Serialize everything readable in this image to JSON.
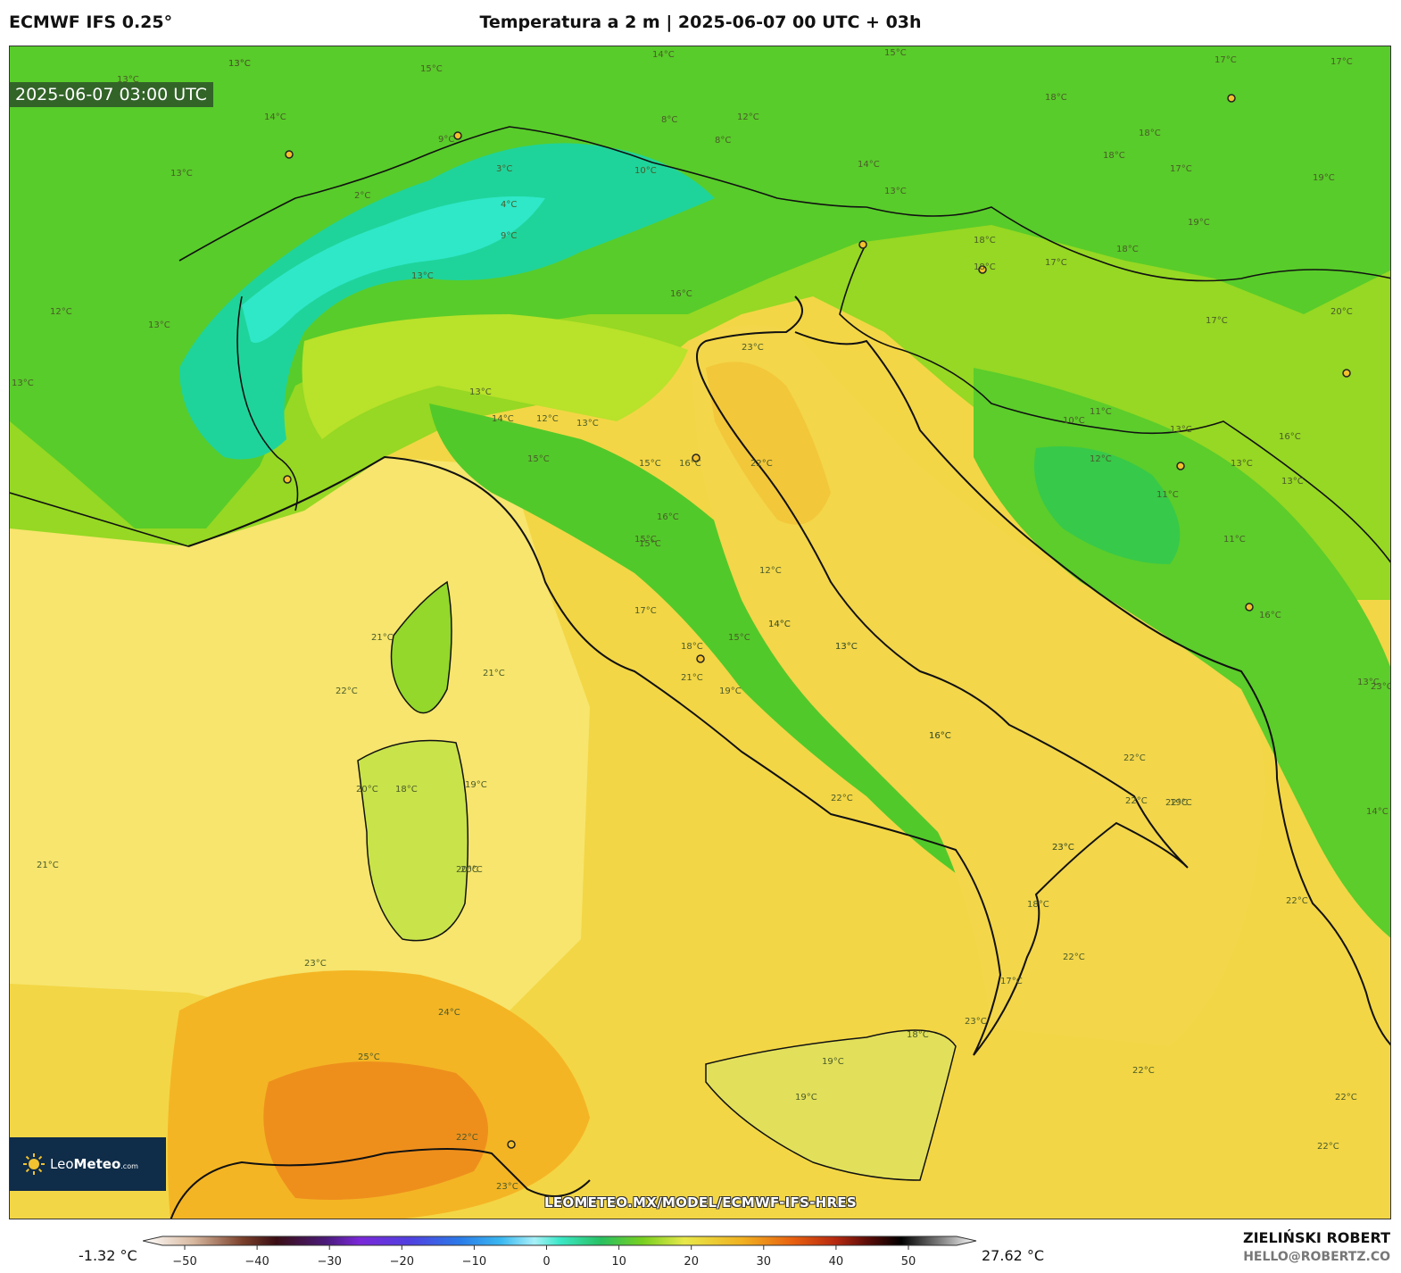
{
  "header": {
    "model": "ECMWF IFS 0.25°",
    "title": "Temperatura a 2 m | 2025-06-07 00 UTC + 03h"
  },
  "map": {
    "valid_time": "2025-06-07 03:00 UTC",
    "watermark": "LEOMETEO.MX/MODEL/ECMWF-IFS-HRES",
    "colors": {
      "cold_alps": "#1fd6a0",
      "green": "#5bd22a",
      "light_green": "#a6e01f",
      "yellow": "#f5e76a",
      "gold": "#f5cc2e",
      "orange": "#f0a21c",
      "deep_orange": "#ea7f1a",
      "coast": "#111111"
    },
    "contour_labels": [
      "13°C",
      "13°C",
      "15°C",
      "14°C",
      "15°C",
      "17°C",
      "18°C",
      "18°C",
      "18°C",
      "17°C",
      "17°C",
      "8°C",
      "12°C",
      "8°C",
      "9°C",
      "3°C",
      "4°C",
      "2°C",
      "9°C",
      "10°C",
      "14°C",
      "13°C",
      "13°C",
      "14°C",
      "13°C",
      "16°C",
      "17°C",
      "18°C",
      "19°C",
      "18°C",
      "18°C",
      "19°C",
      "20°C",
      "17°C",
      "13°C",
      "14°C",
      "12°C",
      "13°C",
      "15°C",
      "16°C",
      "15°C",
      "15°C",
      "16°C",
      "14°C",
      "12°C",
      "13°C",
      "15°C",
      "16°C",
      "17°C",
      "18°C",
      "19°C",
      "21°C",
      "22°C",
      "23°C",
      "22°C",
      "23°C",
      "15°C",
      "22°C",
      "21°C",
      "22°C",
      "18°C",
      "19°C",
      "20°C",
      "20°C",
      "21°C",
      "23°C",
      "24°C",
      "25°C",
      "22°C",
      "23°C",
      "10°C",
      "11°C",
      "13°C",
      "12°C",
      "11°C",
      "11°C",
      "13°C",
      "13°C",
      "16°C",
      "14°C",
      "13°C",
      "16°C",
      "22°C",
      "22°C",
      "23°C",
      "18°C",
      "17°C",
      "19°C",
      "18°C",
      "19°C",
      "22°C",
      "22°C",
      "22°C",
      "22°C",
      "20°C",
      "19°C",
      "23°C",
      "21°C",
      "22°C",
      "23°C",
      "13°C",
      "12°C",
      "13°C",
      "14°C",
      "13°C",
      "16°C",
      "13°C"
    ],
    "logo": {
      "brand_light": "Leo",
      "brand_bold": "Meteo",
      "suffix": ".com"
    }
  },
  "colorbar": {
    "min_label": "-1.32 °C",
    "max_label": "27.62 °C",
    "ticks": [
      "−50",
      "−40",
      "−30",
      "−20",
      "−10",
      "0",
      "10",
      "20",
      "30",
      "40",
      "50"
    ]
  },
  "credit": {
    "name": "ZIELIŃSKI ROBERT",
    "email": "HELLO@ROBERTZ.CO"
  }
}
